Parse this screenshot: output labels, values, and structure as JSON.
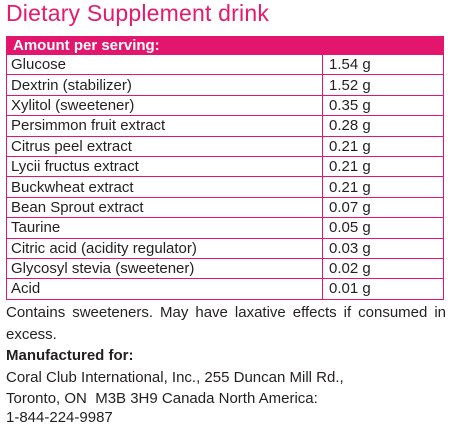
{
  "title": "Dietary Supplement drink",
  "table": {
    "header": "Amount per serving:",
    "rows": [
      {
        "name": "Glucose",
        "amount": "1.54 g"
      },
      {
        "name": "Dextrin (stabilizer)",
        "amount": "1.52 g"
      },
      {
        "name": "Xylitol (sweetener)",
        "amount": "0.35 g"
      },
      {
        "name": "Persimmon fruit extract",
        "amount": "0.28 g"
      },
      {
        "name": "Citrus peel extract",
        "amount": "0.21 g"
      },
      {
        "name": "Lycii fructus extract",
        "amount": "0.21 g"
      },
      {
        "name": "Buckwheat extract",
        "amount": "0.21 g"
      },
      {
        "name": "Bean Sprout extract",
        "amount": "0.07 g"
      },
      {
        "name": "Taurine",
        "amount": "0.05 g"
      },
      {
        "name": "Citric acid (acidity regulator)",
        "amount": "0.03 g"
      },
      {
        "name": "Glycosyl stevia (sweetener)",
        "amount": "0.02 g"
      },
      {
        "name": "Acid",
        "amount": "0.01 g"
      }
    ]
  },
  "note": "Contains sweeteners. May have laxative effects if consumed in excess.",
  "manufacturer": {
    "label": "Manufactured for:",
    "line1": "Coral Club International, Inc., 255 Duncan Mill Rd.,",
    "line2": "Toronto, ON  M3B 3H9 Canada North America:",
    "line3": "1-844-224-9987"
  },
  "colors": {
    "accent": "#e2166c",
    "text": "#231f20"
  }
}
